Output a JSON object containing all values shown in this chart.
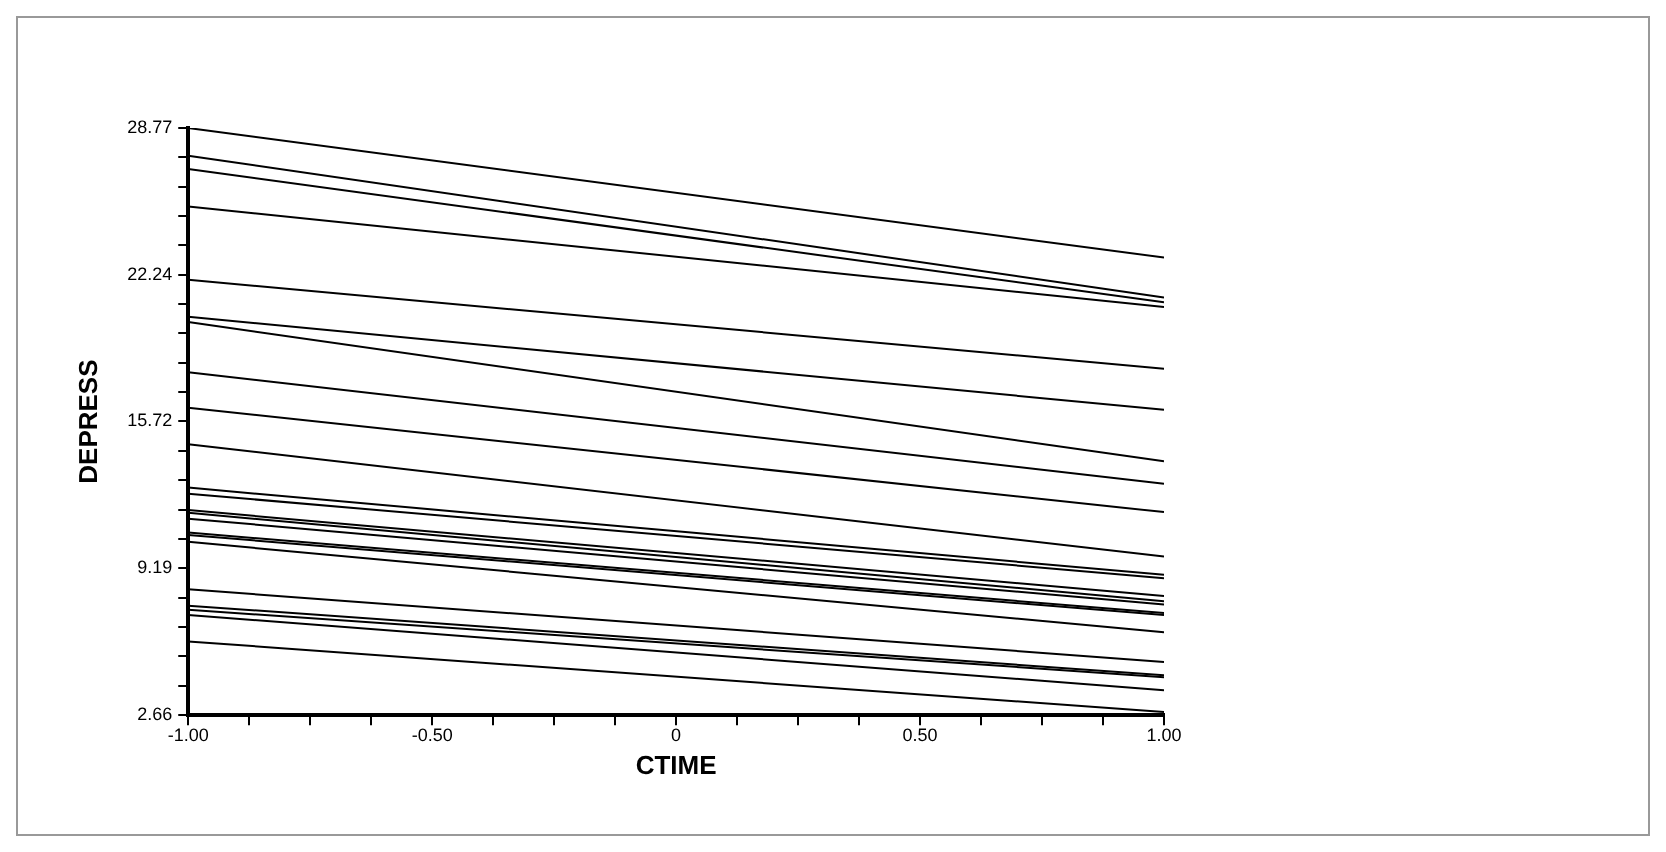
{
  "chart_data": {
    "type": "line",
    "xlabel": "CTIME",
    "ylabel": "DEPRESS",
    "x": [
      -1,
      1
    ],
    "xlim": [
      -1,
      1
    ],
    "ylim": [
      2.66,
      28.77
    ],
    "xticks": [
      {
        "value": -1,
        "label": "-1.00"
      },
      {
        "value": -0.875,
        "label": null
      },
      {
        "value": -0.75,
        "label": null
      },
      {
        "value": -0.625,
        "label": null
      },
      {
        "value": -0.5,
        "label": "-0.50"
      },
      {
        "value": -0.375,
        "label": null
      },
      {
        "value": -0.25,
        "label": null
      },
      {
        "value": -0.125,
        "label": null
      },
      {
        "value": 0,
        "label": "0"
      },
      {
        "value": 0.125,
        "label": null
      },
      {
        "value": 0.25,
        "label": null
      },
      {
        "value": 0.375,
        "label": null
      },
      {
        "value": 0.5,
        "label": "0.50"
      },
      {
        "value": 0.625,
        "label": null
      },
      {
        "value": 0.75,
        "label": null
      },
      {
        "value": 0.875,
        "label": null
      },
      {
        "value": 1,
        "label": "1.00"
      }
    ],
    "yticks": [
      {
        "value": 2.66,
        "label": "2.66"
      },
      {
        "value": 3.966,
        "label": null
      },
      {
        "value": 5.271,
        "label": null
      },
      {
        "value": 6.577,
        "label": null
      },
      {
        "value": 7.883,
        "label": null
      },
      {
        "value": 9.19,
        "label": "9.19"
      },
      {
        "value": 10.496,
        "label": null
      },
      {
        "value": 11.801,
        "label": null
      },
      {
        "value": 13.107,
        "label": null
      },
      {
        "value": 14.413,
        "label": null
      },
      {
        "value": 15.72,
        "label": "15.72"
      },
      {
        "value": 17.026,
        "label": null
      },
      {
        "value": 18.331,
        "label": null
      },
      {
        "value": 19.637,
        "label": null
      },
      {
        "value": 20.943,
        "label": null
      },
      {
        "value": 22.24,
        "label": "22.24"
      },
      {
        "value": 23.546,
        "label": null
      },
      {
        "value": 24.851,
        "label": null
      },
      {
        "value": 26.157,
        "label": null
      },
      {
        "value": 27.463,
        "label": null
      },
      {
        "value": 28.77,
        "label": "28.77"
      }
    ],
    "grid": false,
    "legend": false,
    "marker": "none",
    "line_style": "solid",
    "series": [
      {
        "color": "#000000",
        "values": [
          28.77,
          23.01
        ]
      },
      {
        "color": "#000000",
        "values": [
          27.54,
          21.23
        ]
      },
      {
        "color": "#000000",
        "values": [
          26.95,
          21.02
        ]
      },
      {
        "color": "#000000",
        "values": [
          25.28,
          20.81
        ]
      },
      {
        "color": "#000000",
        "values": [
          22.02,
          18.06
        ]
      },
      {
        "color": "#000000",
        "values": [
          20.38,
          16.24
        ]
      },
      {
        "color": "#000000",
        "values": [
          20.14,
          13.95
        ]
      },
      {
        "color": "#000000",
        "values": [
          17.91,
          12.95
        ]
      },
      {
        "color": "#000000",
        "values": [
          16.33,
          11.69
        ]
      },
      {
        "color": "#000000",
        "values": [
          14.71,
          9.72
        ]
      },
      {
        "color": "#000000",
        "values": [
          12.78,
          8.9
        ]
      },
      {
        "color": "#000000",
        "values": [
          12.51,
          8.75
        ]
      },
      {
        "color": "#000000",
        "values": [
          11.78,
          7.96
        ]
      },
      {
        "color": "#000000",
        "values": [
          11.66,
          7.73
        ]
      },
      {
        "color": "#000000",
        "values": [
          11.4,
          7.58
        ]
      },
      {
        "color": "#000000",
        "values": [
          10.78,
          7.2
        ]
      },
      {
        "color": "#000000",
        "values": [
          10.67,
          7.11
        ]
      },
      {
        "color": "#000000",
        "values": [
          10.37,
          6.35
        ]
      },
      {
        "color": "#000000",
        "values": [
          8.26,
          5.03
        ]
      },
      {
        "color": "#000000",
        "values": [
          7.53,
          4.44
        ]
      },
      {
        "color": "#000000",
        "values": [
          7.35,
          4.35
        ]
      },
      {
        "color": "#000000",
        "values": [
          7.12,
          3.77
        ]
      },
      {
        "color": "#000000",
        "values": [
          5.94,
          2.8
        ]
      }
    ]
  }
}
